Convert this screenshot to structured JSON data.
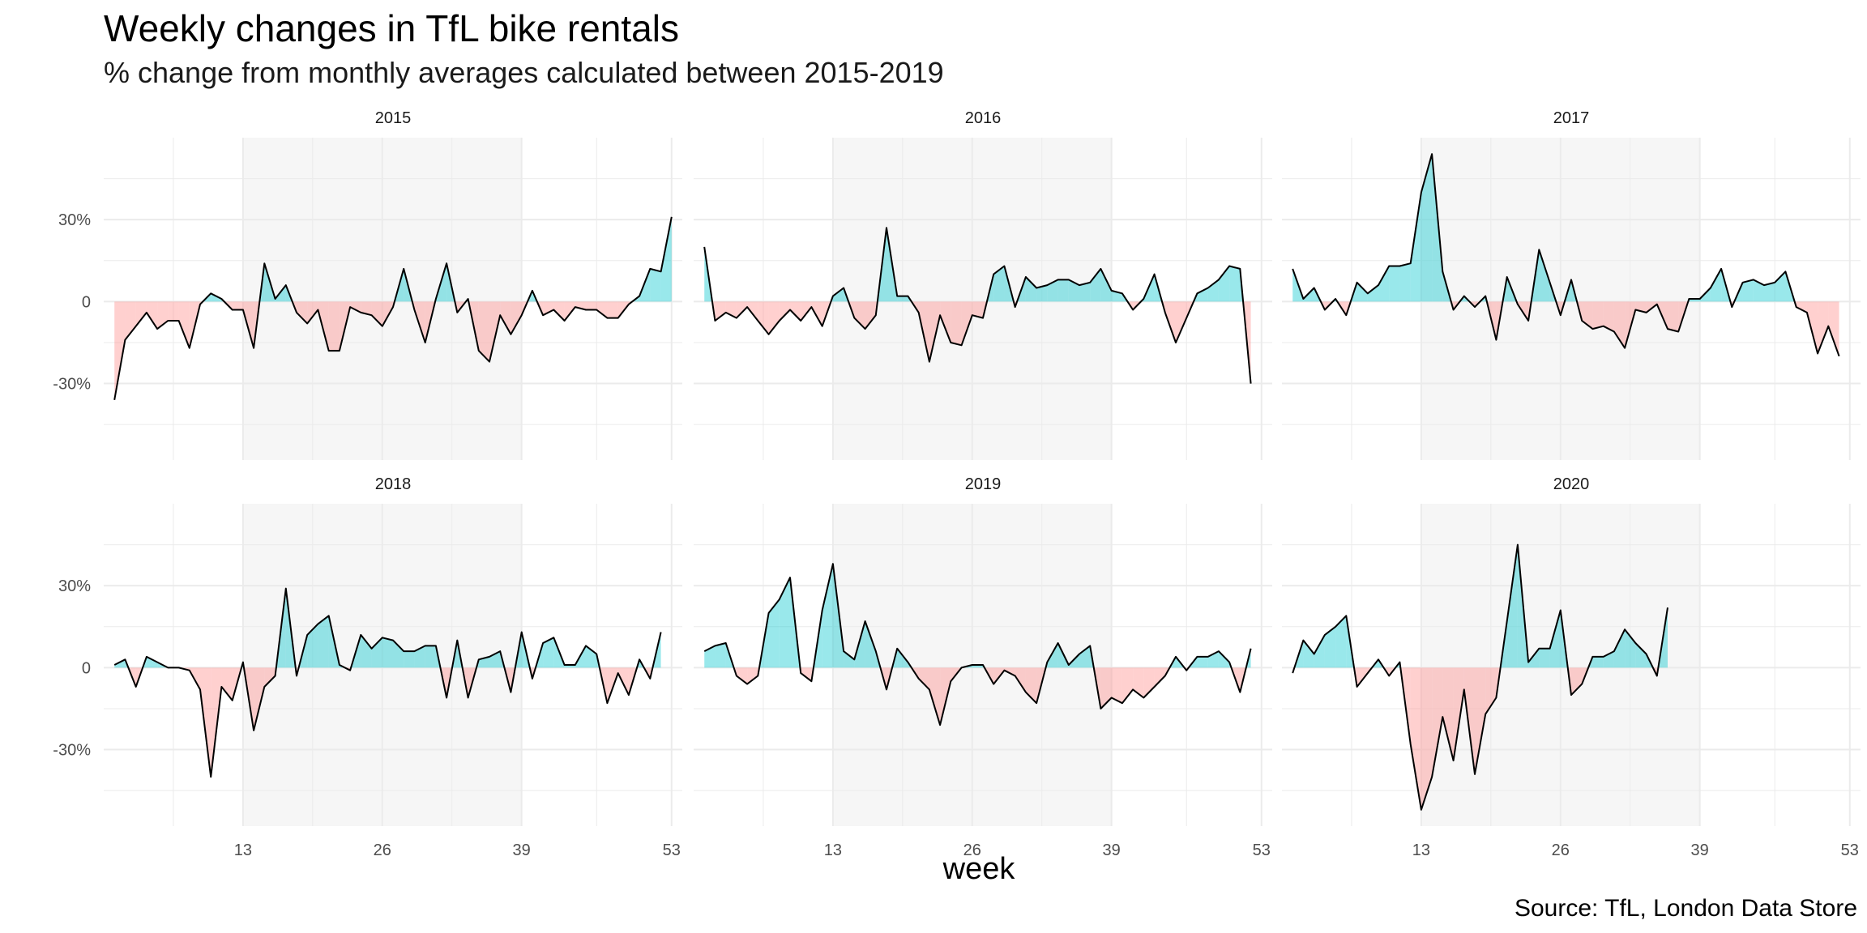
{
  "title": "Weekly changes in TfL bike rentals",
  "subtitle": "% change from monthly averages calculated between 2015-2019",
  "caption": "Source: TfL, London Data Store",
  "colors": {
    "positive": "#00C5CD",
    "negative": "#FF8A86",
    "line": "#000000",
    "shade": "#F6F6F6",
    "grid": "#EBEBEB"
  },
  "chart_data": {
    "type": "area",
    "xlabel": "week",
    "ylabel": "",
    "xlim": [
      0,
      54
    ],
    "ylim": [
      -58,
      60
    ],
    "x_ticks": [
      13,
      26,
      39,
      53
    ],
    "y_ticks": [
      -30,
      0,
      30
    ],
    "y_tick_labels": [
      "-30%",
      "0",
      "30%"
    ],
    "shaded_weeks": [
      13,
      39
    ],
    "grid": true,
    "panels": [
      {
        "name": "2015",
        "start_week": 1,
        "values": [
          -36,
          -14,
          -9,
          -4,
          -10,
          -7,
          -7,
          -17,
          -1,
          3,
          1,
          -3,
          -3,
          -17,
          14,
          1,
          6,
          -4,
          -8,
          -3,
          -18,
          -18,
          -2,
          -4,
          -5,
          -9,
          -2,
          12,
          -3,
          -15,
          1,
          14,
          -4,
          1,
          -18,
          -22,
          -5,
          -12,
          -5,
          4,
          -5,
          -3,
          -7,
          -2,
          -3,
          -3,
          -6,
          -6,
          -1,
          2,
          12,
          11,
          31
        ]
      },
      {
        "name": "2016",
        "start_week": 1,
        "values": [
          20,
          -7,
          -4,
          -6,
          -2,
          -7,
          -12,
          -7,
          -3,
          -7,
          -2,
          -9,
          2,
          5,
          -6,
          -10,
          -5,
          27,
          2,
          2,
          -4,
          -22,
          -5,
          -15,
          -16,
          -5,
          -6,
          10,
          13,
          -2,
          9,
          5,
          6,
          8,
          8,
          6,
          7,
          12,
          4,
          3,
          -3,
          1,
          10,
          -4,
          -15,
          -6,
          3,
          5,
          8,
          13,
          12,
          -30
        ]
      },
      {
        "name": "2017",
        "start_week": 1,
        "values": [
          12,
          1,
          5,
          -3,
          1,
          -5,
          7,
          3,
          6,
          13,
          13,
          14,
          40,
          54,
          11,
          -3,
          2,
          -2,
          2,
          -14,
          9,
          -1,
          -7,
          19,
          7,
          -5,
          8,
          -7,
          -10,
          -9,
          -11,
          -17,
          -3,
          -4,
          -1,
          -10,
          -11,
          1,
          1,
          5,
          12,
          -2,
          7,
          8,
          6,
          7,
          11,
          -2,
          -4,
          -19,
          -9,
          -20
        ]
      },
      {
        "name": "2018",
        "start_week": 1,
        "values": [
          1,
          3,
          -7,
          4,
          2,
          0,
          0,
          -1,
          -8,
          -40,
          -7,
          -12,
          2,
          -23,
          -7,
          -3,
          29,
          -3,
          12,
          16,
          19,
          1,
          -1,
          12,
          7,
          11,
          10,
          6,
          6,
          8,
          8,
          -11,
          10,
          -11,
          3,
          4,
          6,
          -9,
          13,
          -4,
          9,
          11,
          1,
          1,
          8,
          5,
          -13,
          -2,
          -10,
          3,
          -4,
          13
        ]
      },
      {
        "name": "2019",
        "start_week": 1,
        "values": [
          6,
          8,
          9,
          -3,
          -6,
          -3,
          20,
          25,
          33,
          -2,
          -5,
          21,
          38,
          6,
          3,
          17,
          6,
          -8,
          7,
          2,
          -4,
          -8,
          -21,
          -5,
          0,
          1,
          1,
          -6,
          -1,
          -3,
          -9,
          -13,
          2,
          9,
          1,
          5,
          8,
          -15,
          -11,
          -13,
          -8,
          -11,
          -7,
          -3,
          4,
          -1,
          4,
          4,
          6,
          2,
          -9,
          7
        ]
      },
      {
        "name": "2020",
        "start_week": 1,
        "values": [
          -2,
          10,
          5,
          12,
          15,
          19,
          -7,
          -2,
          3,
          -3,
          2,
          -28,
          -52,
          -40,
          -18,
          -34,
          -8,
          -39,
          -17,
          -11,
          17,
          45,
          2,
          7,
          7,
          21,
          -10,
          -6,
          4,
          4,
          6,
          14,
          9,
          5,
          -3,
          22
        ]
      }
    ]
  }
}
